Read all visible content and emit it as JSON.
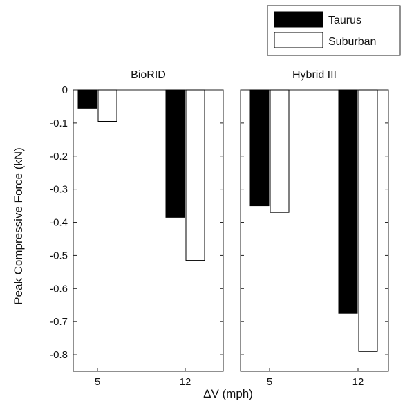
{
  "chart_data": {
    "type": "bar",
    "ylabel": "Peak Compressive Force (kN)",
    "xlabel": "ΔV (mph)",
    "ylim": [
      -0.85,
      0
    ],
    "yticks": [
      0,
      -0.1,
      -0.2,
      -0.3,
      -0.4,
      -0.5,
      -0.6,
      -0.7,
      -0.8
    ],
    "ytick_labels": [
      "0",
      "-0.1",
      "-0.2",
      "-0.3",
      "-0.4",
      "-0.5",
      "-0.6",
      "-0.7",
      "-0.8"
    ],
    "legend": {
      "position": "top-right",
      "entries": [
        {
          "name": "Taurus",
          "color": "#000000"
        },
        {
          "name": "Suburban",
          "color": "#ffffff"
        }
      ]
    },
    "grid": false,
    "panels": [
      {
        "title": "BioRID",
        "categories": [
          "5",
          "12"
        ],
        "series": [
          {
            "name": "Taurus",
            "values": [
              -0.055,
              -0.385
            ]
          },
          {
            "name": "Suburban",
            "values": [
              -0.095,
              -0.515
            ]
          }
        ]
      },
      {
        "title": "Hybrid III",
        "categories": [
          "5",
          "12"
        ],
        "series": [
          {
            "name": "Taurus",
            "values": [
              -0.35,
              -0.675
            ]
          },
          {
            "name": "Suburban",
            "values": [
              -0.37,
              -0.79
            ]
          }
        ]
      }
    ]
  }
}
